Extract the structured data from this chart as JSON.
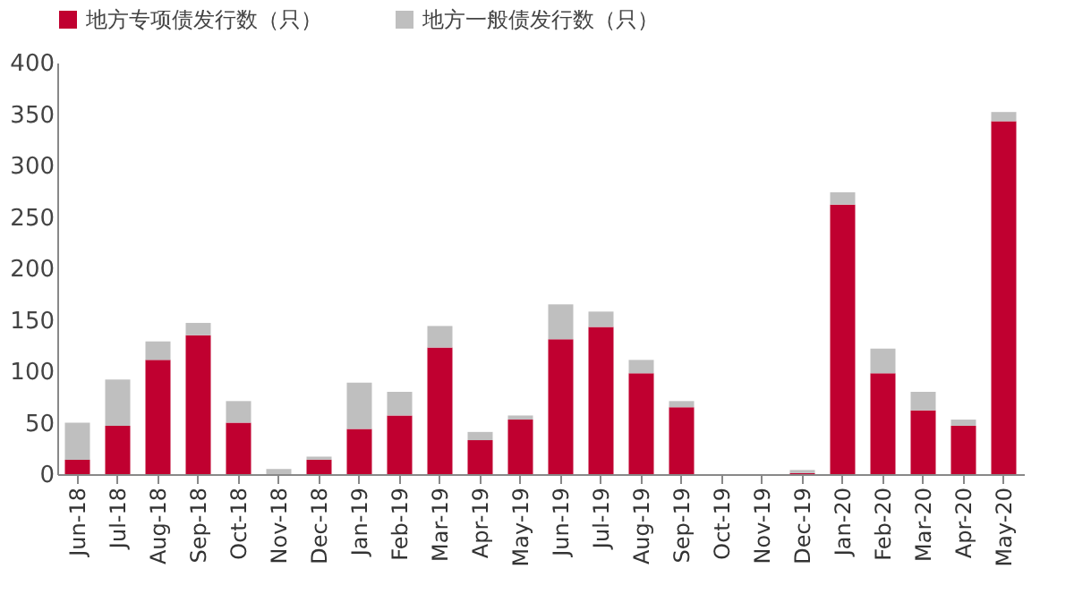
{
  "chart_data": {
    "type": "bar",
    "stacked": true,
    "categories": [
      "Jun-18",
      "Jul-18",
      "Aug-18",
      "Sep-18",
      "Oct-18",
      "Nov-18",
      "Dec-18",
      "Jan-19",
      "Feb-19",
      "Mar-19",
      "Apr-19",
      "May-19",
      "Jun-19",
      "Jul-19",
      "Aug-19",
      "Sep-19",
      "Oct-19",
      "Nov-19",
      "Dec-19",
      "Jan-20",
      "Feb-20",
      "Mar-20",
      "Apr-20",
      "May-20"
    ],
    "series": [
      {
        "name": "地方专项债发行数（只）",
        "color": "#c00030",
        "values": [
          14,
          47,
          111,
          135,
          50,
          0,
          14,
          44,
          57,
          123,
          33,
          53,
          131,
          143,
          98,
          65,
          0,
          0,
          1,
          262,
          98,
          62,
          47,
          343
        ]
      },
      {
        "name": "地方一般债发行数（只）",
        "color": "#bfbfbf",
        "values": [
          36,
          45,
          18,
          12,
          21,
          5,
          3,
          45,
          23,
          21,
          8,
          4,
          34,
          15,
          13,
          6,
          0,
          0,
          3,
          12,
          24,
          18,
          6,
          9
        ]
      }
    ],
    "ylim": [
      0,
      400
    ],
    "yticks": [
      0,
      50,
      100,
      150,
      200,
      250,
      300,
      350,
      400
    ],
    "grid": false,
    "legend": "top"
  }
}
